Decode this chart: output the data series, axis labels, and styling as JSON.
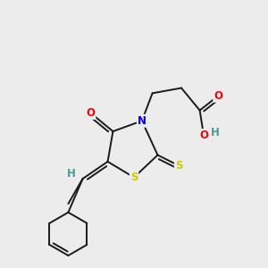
{
  "bg_color": "#ececec",
  "bond_color": "#1a1a1a",
  "atom_colors": {
    "O": "#ff0000",
    "N": "#0000ff",
    "S": "#cccc00",
    "H": "#4a9a9a",
    "C": "#1a1a1a"
  },
  "font_size": 8.5,
  "line_width": 1.4,
  "dbl_off": 0.12
}
